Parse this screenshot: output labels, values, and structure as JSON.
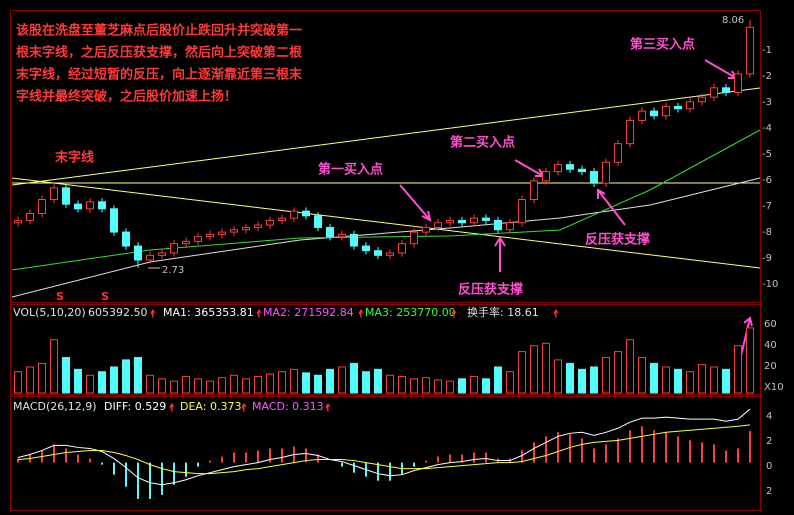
{
  "note_lines": [
    "该股在洗盘至董芝麻点后股价止跌回升并突破第一",
    "根末字线，之后反压获支撑，然后向上突破第二根",
    "末字线，经过短暂的反压，向上逐渐靠近第三根末",
    "字线并最终突破，之后股价加速上扬！"
  ],
  "annotations": {
    "trend_line": "末字线",
    "buy1": "第一买入点",
    "buy2": "第二买入点",
    "buy3": "第三买入点",
    "support1": "反压获支撑",
    "support2": "反压获支撑",
    "sell_marks": [
      "S",
      "S"
    ]
  },
  "price_panel": {
    "type": "candlestick",
    "ylim": [
      2.04,
      8.23
    ],
    "high_label": 8.06,
    "low_label": 2.73,
    "up_color": "#ff3c3c",
    "down_color": "#54fcfc",
    "axis_labels": [
      "-1",
      "-2",
      "-3",
      "-4",
      "-5",
      "-6",
      "-7",
      "-8",
      "-9",
      "-10"
    ],
    "ohlc": [
      [
        3.7,
        3.83,
        3.62,
        3.75
      ],
      [
        3.75,
        3.98,
        3.67,
        3.9
      ],
      [
        3.9,
        4.28,
        3.82,
        4.2
      ],
      [
        4.2,
        4.53,
        4.12,
        4.45
      ],
      [
        4.45,
        4.53,
        4.02,
        4.1
      ],
      [
        4.1,
        4.18,
        3.92,
        4.0
      ],
      [
        4.0,
        4.23,
        3.92,
        4.15
      ],
      [
        4.15,
        4.23,
        3.92,
        4.0
      ],
      [
        4.0,
        4.08,
        3.42,
        3.5
      ],
      [
        3.5,
        3.58,
        3.12,
        3.2
      ],
      [
        3.2,
        3.28,
        2.73,
        2.9
      ],
      [
        2.9,
        3.08,
        2.82,
        3.0
      ],
      [
        3.0,
        3.13,
        2.92,
        3.05
      ],
      [
        3.05,
        3.33,
        2.97,
        3.25
      ],
      [
        3.25,
        3.38,
        3.17,
        3.3
      ],
      [
        3.3,
        3.48,
        3.22,
        3.4
      ],
      [
        3.4,
        3.53,
        3.32,
        3.45
      ],
      [
        3.45,
        3.58,
        3.37,
        3.5
      ],
      [
        3.5,
        3.63,
        3.42,
        3.55
      ],
      [
        3.55,
        3.68,
        3.47,
        3.6
      ],
      [
        3.6,
        3.73,
        3.52,
        3.65
      ],
      [
        3.65,
        3.83,
        3.57,
        3.75
      ],
      [
        3.75,
        3.88,
        3.67,
        3.8
      ],
      [
        3.8,
        4.03,
        3.72,
        3.95
      ],
      [
        3.95,
        4.03,
        3.77,
        3.85
      ],
      [
        3.85,
        3.93,
        3.52,
        3.6
      ],
      [
        3.6,
        3.68,
        3.32,
        3.4
      ],
      [
        3.4,
        3.53,
        3.32,
        3.45
      ],
      [
        3.45,
        3.53,
        3.12,
        3.2
      ],
      [
        3.2,
        3.28,
        3.02,
        3.1
      ],
      [
        3.1,
        3.18,
        2.92,
        3.0
      ],
      [
        3.0,
        3.13,
        2.92,
        3.05
      ],
      [
        3.05,
        3.33,
        2.97,
        3.25
      ],
      [
        3.25,
        3.58,
        3.17,
        3.5
      ],
      [
        3.5,
        3.68,
        3.42,
        3.6
      ],
      [
        3.6,
        3.78,
        3.52,
        3.7
      ],
      [
        3.7,
        3.83,
        3.62,
        3.75
      ],
      [
        3.75,
        3.83,
        3.62,
        3.7
      ],
      [
        3.7,
        3.88,
        3.62,
        3.8
      ],
      [
        3.8,
        3.88,
        3.67,
        3.75
      ],
      [
        3.75,
        3.83,
        3.47,
        3.55
      ],
      [
        3.55,
        3.78,
        3.47,
        3.7
      ],
      [
        3.7,
        4.28,
        3.62,
        4.2
      ],
      [
        4.2,
        4.68,
        4.12,
        4.6
      ],
      [
        4.6,
        4.88,
        4.52,
        4.8
      ],
      [
        4.8,
        5.03,
        4.72,
        4.95
      ],
      [
        4.95,
        5.03,
        4.77,
        4.85
      ],
      [
        4.85,
        4.93,
        4.72,
        4.8
      ],
      [
        4.8,
        4.88,
        4.47,
        4.55
      ],
      [
        4.55,
        5.08,
        4.47,
        5.0
      ],
      [
        5.0,
        5.48,
        4.92,
        5.4
      ],
      [
        5.4,
        5.98,
        5.32,
        5.9
      ],
      [
        5.9,
        6.18,
        5.82,
        6.1
      ],
      [
        6.1,
        6.18,
        5.92,
        6.0
      ],
      [
        6.0,
        6.28,
        5.92,
        6.2
      ],
      [
        6.2,
        6.28,
        6.07,
        6.15
      ],
      [
        6.15,
        6.38,
        6.07,
        6.3
      ],
      [
        6.3,
        6.48,
        6.22,
        6.4
      ],
      [
        6.4,
        6.68,
        6.32,
        6.6
      ],
      [
        6.6,
        6.68,
        6.42,
        6.5
      ],
      [
        6.5,
        6.98,
        6.42,
        6.9
      ],
      [
        6.9,
        8.06,
        6.82,
        7.9
      ]
    ]
  },
  "volume_panel": {
    "type": "bar",
    "title": "VOL(5,10,20)",
    "value": "605392.50",
    "ma1": "MA1: 365353.81",
    "ma2": "MA2: 271592.84",
    "ma3": "MA3: 253770.00",
    "turnover": "换手率: 18.61",
    "ylim": [
      0,
      74.4
    ],
    "axis_labels": [
      "60",
      "40",
      "20",
      "X10"
    ],
    "values": [
      18,
      22,
      25,
      45,
      30,
      20,
      15,
      18,
      22,
      28,
      30,
      15,
      12,
      10,
      14,
      12,
      10,
      13,
      15,
      12,
      14,
      16,
      18,
      20,
      17,
      15,
      20,
      22,
      25,
      18,
      20,
      15,
      14,
      12,
      13,
      11,
      10,
      12,
      14,
      12,
      22,
      18,
      35,
      40,
      42,
      28,
      25,
      20,
      22,
      30,
      35,
      45,
      30,
      25,
      22,
      20,
      18,
      24,
      22,
      20,
      40,
      55
    ]
  },
  "macd_panel": {
    "type": "macd",
    "title": "MACD(26,12,9)",
    "diff_label": "DIFF: 0.529",
    "dea_label": "DEA: 0.373",
    "macd_label": "MACD: 0.313",
    "ylim": [
      -0.45,
      0.62
    ],
    "axis_labels": [
      "4",
      "2",
      "0",
      "2"
    ],
    "diff": [
      0.05,
      0.08,
      0.12,
      0.17,
      0.17,
      0.15,
      0.14,
      0.11,
      0.04,
      -0.05,
      -0.15,
      -0.2,
      -0.22,
      -0.2,
      -0.17,
      -0.13,
      -0.1,
      -0.07,
      -0.04,
      -0.02,
      0.0,
      0.03,
      0.05,
      0.08,
      0.09,
      0.07,
      0.03,
      0.01,
      -0.03,
      -0.07,
      -0.11,
      -0.13,
      -0.12,
      -0.08,
      -0.05,
      -0.02,
      0.0,
      0.01,
      0.03,
      0.04,
      0.02,
      0.02,
      0.07,
      0.14,
      0.2,
      0.26,
      0.29,
      0.3,
      0.27,
      0.3,
      0.34,
      0.4,
      0.44,
      0.44,
      0.45,
      0.44,
      0.43,
      0.43,
      0.43,
      0.41,
      0.43,
      0.529
    ],
    "dea": [
      0.03,
      0.04,
      0.06,
      0.08,
      0.1,
      0.11,
      0.12,
      0.12,
      0.1,
      0.07,
      0.03,
      -0.02,
      -0.06,
      -0.09,
      -0.1,
      -0.11,
      -0.11,
      -0.1,
      -0.09,
      -0.07,
      -0.06,
      -0.04,
      -0.02,
      0.0,
      0.02,
      0.03,
      0.03,
      0.03,
      0.02,
      0.0,
      -0.02,
      -0.04,
      -0.06,
      -0.06,
      -0.06,
      -0.05,
      -0.04,
      -0.03,
      -0.02,
      -0.01,
      0.0,
      0.0,
      0.01,
      0.04,
      0.07,
      0.11,
      0.15,
      0.18,
      0.2,
      0.21,
      0.22,
      0.24,
      0.26,
      0.28,
      0.3,
      0.31,
      0.32,
      0.33,
      0.34,
      0.35,
      0.36,
      0.373
    ],
    "hist": [
      0.04,
      0.08,
      0.12,
      0.18,
      0.14,
      0.08,
      0.04,
      -0.02,
      -0.12,
      -0.24,
      -0.36,
      -0.36,
      -0.32,
      -0.22,
      -0.14,
      -0.04,
      0.02,
      0.06,
      0.1,
      0.1,
      0.12,
      0.14,
      0.14,
      0.16,
      0.14,
      0.08,
      0.0,
      -0.04,
      -0.1,
      -0.14,
      -0.18,
      -0.18,
      -0.12,
      -0.04,
      0.02,
      0.06,
      0.08,
      0.08,
      0.1,
      0.1,
      0.04,
      0.04,
      0.12,
      0.2,
      0.26,
      0.3,
      0.28,
      0.24,
      0.14,
      0.18,
      0.24,
      0.32,
      0.36,
      0.32,
      0.3,
      0.26,
      0.22,
      0.2,
      0.18,
      0.12,
      0.14,
      0.313
    ]
  }
}
